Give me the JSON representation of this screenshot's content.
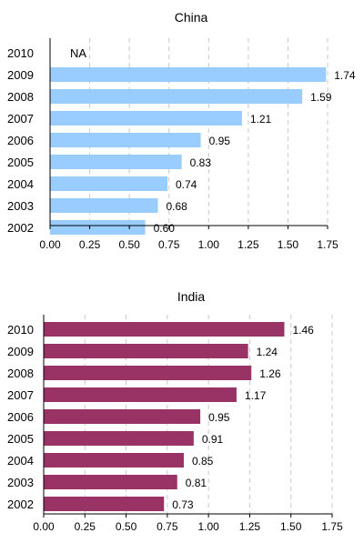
{
  "chart_data": [
    {
      "type": "bar",
      "orientation": "horizontal",
      "title": "China",
      "categories": [
        "2010",
        "2009",
        "2008",
        "2007",
        "2006",
        "2005",
        "2004",
        "2003",
        "2002"
      ],
      "values": [
        null,
        1.74,
        1.59,
        1.21,
        0.95,
        0.83,
        0.74,
        0.68,
        0.6
      ],
      "value_labels": [
        "NA",
        "1.74",
        "1.59",
        "1.21",
        "0.95",
        "0.83",
        "0.74",
        "0.68",
        "0.60"
      ],
      "x_ticks": [
        "0.00",
        "0.25",
        "0.50",
        "0.75",
        "1.00",
        "1.25",
        "1.50",
        "1.75"
      ],
      "xlim": [
        0,
        1.75
      ],
      "xlabel": "",
      "ylabel": "",
      "grid": "vertical dashed",
      "bar_color": "#99ccff"
    },
    {
      "type": "bar",
      "orientation": "horizontal",
      "title": "India",
      "categories": [
        "2010",
        "2009",
        "2008",
        "2007",
        "2006",
        "2005",
        "2004",
        "2003",
        "2002"
      ],
      "values": [
        1.46,
        1.24,
        1.26,
        1.17,
        0.95,
        0.91,
        0.85,
        0.81,
        0.73
      ],
      "value_labels": [
        "1.46",
        "1.24",
        "1.26",
        "1.17",
        "0.95",
        "0.91",
        "0.85",
        "0.81",
        "0.73"
      ],
      "x_ticks": [
        "0.00",
        "0.25",
        "0.50",
        "0.75",
        "1.00",
        "1.25",
        "1.50",
        "1.75"
      ],
      "xlim": [
        0,
        1.75
      ],
      "xlabel": "",
      "ylabel": "",
      "grid": "vertical dashed",
      "bar_color": "#993366"
    }
  ]
}
